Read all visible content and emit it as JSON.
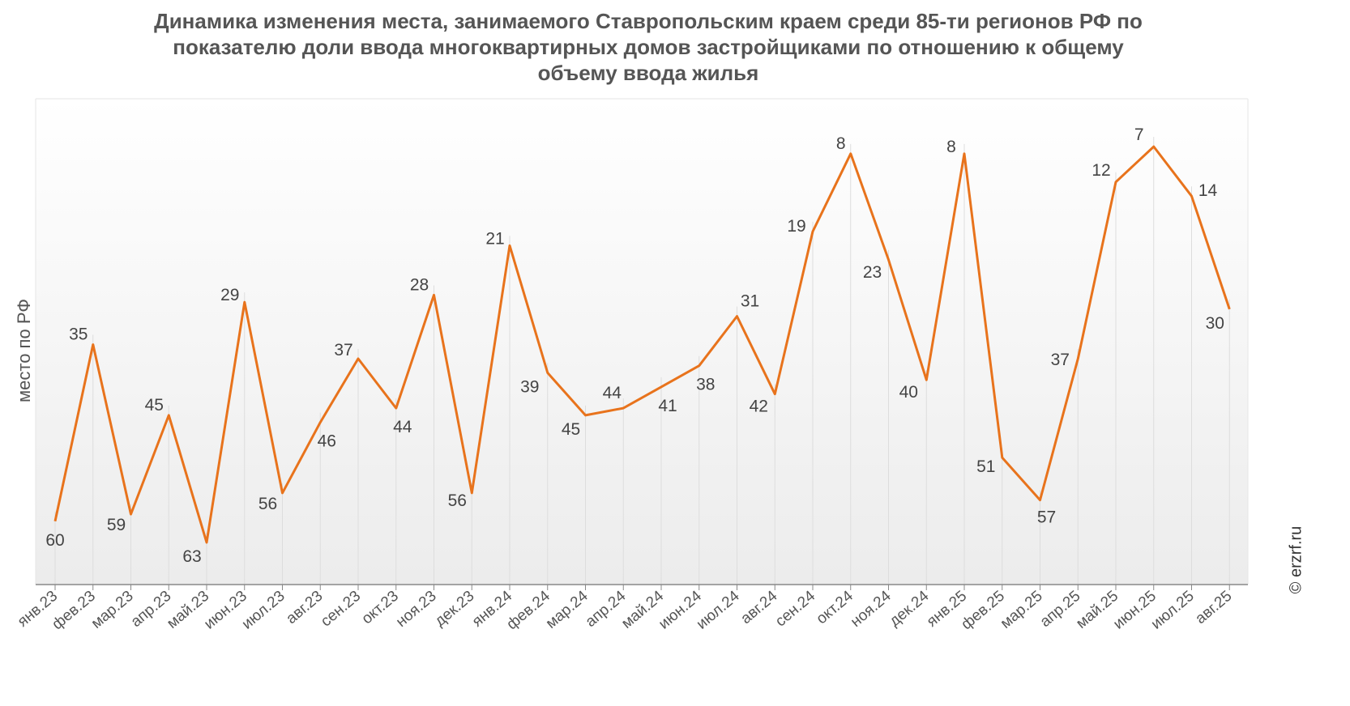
{
  "chart_data": {
    "type": "line",
    "title_lines": [
      "Динамика изменения места, занимаемого Ставропольским краем среди 85-ти регионов РФ по",
      "показателю доли ввода многоквартирных домов застройщиками по отношению к общему",
      "объему ввода жилья"
    ],
    "ylabel": "место по РФ",
    "y_inverted": true,
    "ylim": [
      70,
      0
    ],
    "grid": false,
    "series_color": "#E8731C",
    "categories": [
      "янв.23",
      "фев.23",
      "мар.23",
      "апр.23",
      "май.23",
      "июн.23",
      "июл.23",
      "авг.23",
      "сен.23",
      "окт.23",
      "ноя.23",
      "дек.23",
      "янв.24",
      "фев.24",
      "мар.24",
      "апр.24",
      "май.24",
      "июн.24",
      "июл.24",
      "авг.24",
      "сен.24",
      "окт.24",
      "ноя.24",
      "дек.24",
      "янв.25",
      "фев.25",
      "мар.25",
      "апр.25",
      "май.25",
      "июн.25",
      "июл.25",
      "авг.25"
    ],
    "values": [
      60,
      35,
      59,
      45,
      63,
      29,
      56,
      46,
      37,
      44,
      28,
      56,
      21,
      39,
      45,
      44,
      41,
      38,
      31,
      42,
      19,
      8,
      23,
      40,
      8,
      51,
      57,
      37,
      12,
      7,
      14,
      30
    ]
  },
  "watermark": "© erzrf.ru"
}
